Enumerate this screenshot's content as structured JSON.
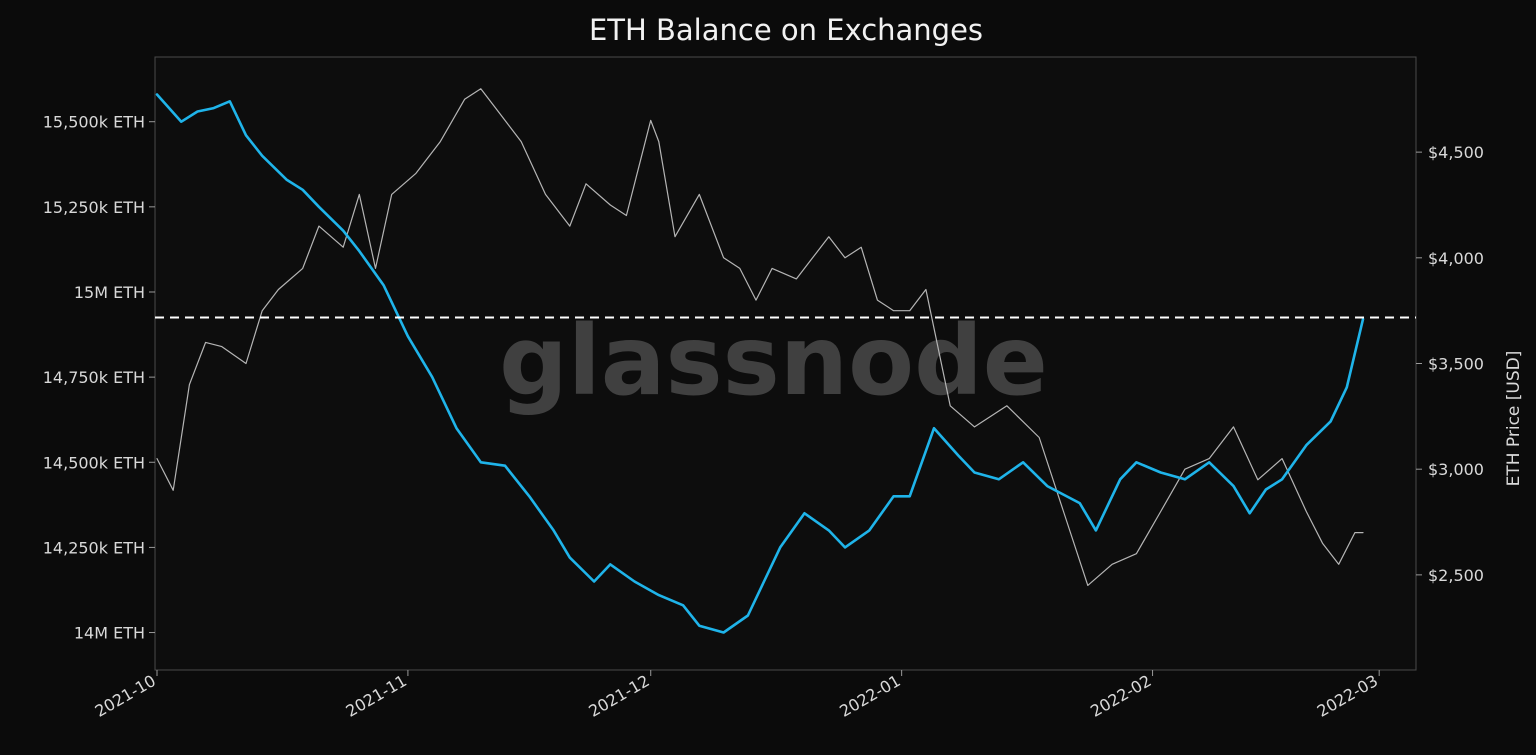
{
  "chart_data": {
    "type": "line",
    "title": "ETH Balance on Exchanges",
    "watermark": "glassnode",
    "x_range": [
      "2021-10-01",
      "2022-02-27"
    ],
    "x_ticks": [
      "2021-10",
      "2021-11",
      "2021-12",
      "2022-01",
      "2022-02",
      "2022-03"
    ],
    "y_left": {
      "label": "",
      "range": [
        13890,
        15690
      ],
      "ticks": [
        {
          "value": 14000,
          "label": "14M ETH"
        },
        {
          "value": 14250,
          "label": "14,250k ETH"
        },
        {
          "value": 14500,
          "label": "14,500k ETH"
        },
        {
          "value": 14750,
          "label": "14,750k ETH"
        },
        {
          "value": 15000,
          "label": "15M ETH"
        },
        {
          "value": 15250,
          "label": "15,250k ETH"
        },
        {
          "value": 15500,
          "label": "15,500k ETH"
        }
      ]
    },
    "y_right": {
      "label": "ETH Price [USD]",
      "range": [
        2050,
        4950
      ],
      "ticks": [
        {
          "value": 2500,
          "label": "$2,500"
        },
        {
          "value": 3000,
          "label": "$3,000"
        },
        {
          "value": 3500,
          "label": "$3,500"
        },
        {
          "value": 4000,
          "label": "$4,000"
        },
        {
          "value": 4500,
          "label": "$4,500"
        }
      ]
    },
    "reference_line": {
      "axis": "left",
      "value": 14925,
      "style": "dashed",
      "color": "#ffffff"
    },
    "series": [
      {
        "axis": "left",
        "color": "#1fb4ea",
        "x": [
          "2021-10-01",
          "2021-10-04",
          "2021-10-06",
          "2021-10-08",
          "2021-10-10",
          "2021-10-12",
          "2021-10-14",
          "2021-10-17",
          "2021-10-19",
          "2021-10-21",
          "2021-10-24",
          "2021-10-26",
          "2021-10-29",
          "2021-11-01",
          "2021-11-04",
          "2021-11-07",
          "2021-11-10",
          "2021-11-13",
          "2021-11-16",
          "2021-11-19",
          "2021-11-21",
          "2021-11-24",
          "2021-11-26",
          "2021-11-29",
          "2021-12-02",
          "2021-12-05",
          "2021-12-07",
          "2021-12-10",
          "2021-12-13",
          "2021-12-15",
          "2021-12-17",
          "2021-12-20",
          "2021-12-23",
          "2021-12-25",
          "2021-12-28",
          "2021-12-31",
          "2022-01-02",
          "2022-01-05",
          "2022-01-08",
          "2022-01-10",
          "2022-01-13",
          "2022-01-16",
          "2022-01-19",
          "2022-01-23",
          "2022-01-25",
          "2022-01-28",
          "2022-01-30",
          "2022-02-02",
          "2022-02-05",
          "2022-02-08",
          "2022-02-11",
          "2022-02-13",
          "2022-02-15",
          "2022-02-17",
          "2022-02-20",
          "2022-02-23",
          "2022-02-25",
          "2022-02-27"
        ],
        "values": [
          15580,
          15500,
          15530,
          15540,
          15560,
          15460,
          15400,
          15330,
          15300,
          15250,
          15180,
          15120,
          15020,
          14870,
          14750,
          14600,
          14500,
          14490,
          14400,
          14300,
          14220,
          14150,
          14200,
          14150,
          14110,
          14080,
          14020,
          14000,
          14050,
          14150,
          14250,
          14350,
          14300,
          14250,
          14300,
          14400,
          14400,
          14600,
          14520,
          14470,
          14450,
          14500,
          14430,
          14380,
          14300,
          14450,
          14500,
          14470,
          14450,
          14500,
          14430,
          14350,
          14420,
          14450,
          14550,
          14620,
          14720,
          14920
        ]
      },
      {
        "axis": "right",
        "color": "#b5b5b5",
        "x": [
          "2021-10-01",
          "2021-10-03",
          "2021-10-05",
          "2021-10-07",
          "2021-10-09",
          "2021-10-12",
          "2021-10-14",
          "2021-10-16",
          "2021-10-19",
          "2021-10-21",
          "2021-10-24",
          "2021-10-26",
          "2021-10-28",
          "2021-10-30",
          "2021-11-02",
          "2021-11-05",
          "2021-11-08",
          "2021-11-10",
          "2021-11-12",
          "2021-11-15",
          "2021-11-18",
          "2021-11-21",
          "2021-11-23",
          "2021-11-26",
          "2021-11-28",
          "2021-12-01",
          "2021-12-02",
          "2021-12-04",
          "2021-12-07",
          "2021-12-10",
          "2021-12-12",
          "2021-12-14",
          "2021-12-16",
          "2021-12-19",
          "2021-12-21",
          "2021-12-23",
          "2021-12-25",
          "2021-12-27",
          "2021-12-29",
          "2021-12-31",
          "2022-01-02",
          "2022-01-04",
          "2022-01-07",
          "2022-01-10",
          "2022-01-14",
          "2022-01-18",
          "2022-01-21",
          "2022-01-24",
          "2022-01-27",
          "2022-01-30",
          "2022-02-02",
          "2022-02-05",
          "2022-02-08",
          "2022-02-11",
          "2022-02-14",
          "2022-02-17",
          "2022-02-20",
          "2022-02-22",
          "2022-02-24",
          "2022-02-26",
          "2022-02-27"
        ],
        "values": [
          3050,
          2900,
          3400,
          3600,
          3580,
          3500,
          3750,
          3850,
          3950,
          4150,
          4050,
          4300,
          3950,
          4300,
          4400,
          4550,
          4750,
          4800,
          4700,
          4550,
          4300,
          4150,
          4350,
          4250,
          4200,
          4650,
          4550,
          4100,
          4300,
          4000,
          3950,
          3800,
          3950,
          3900,
          4000,
          4100,
          4000,
          4050,
          3800,
          3750,
          3750,
          3850,
          3300,
          3200,
          3300,
          3150,
          2800,
          2450,
          2550,
          2600,
          2800,
          3000,
          3050,
          3200,
          2950,
          3050,
          2800,
          2650,
          2550,
          2700,
          2700
        ]
      }
    ]
  }
}
